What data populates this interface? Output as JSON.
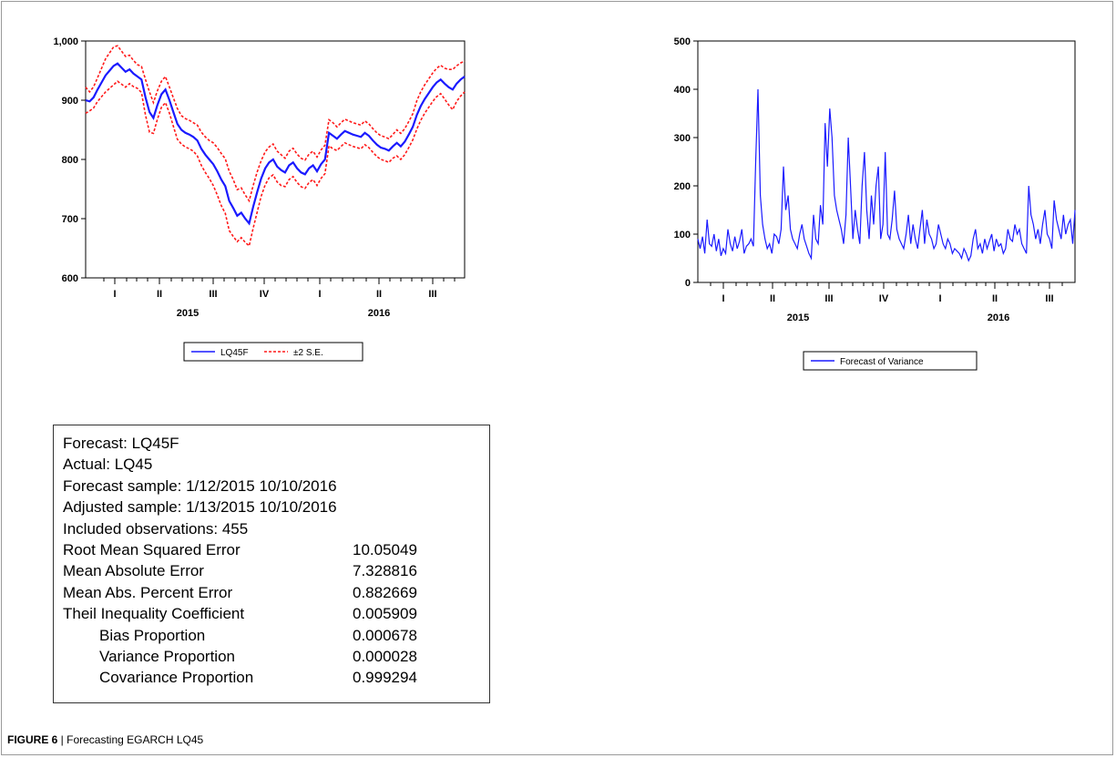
{
  "chart_data": [
    {
      "type": "line",
      "title": "",
      "xlabel": "",
      "ylabel": "",
      "ylim": [
        600,
        1000
      ],
      "yticks": [
        600,
        700,
        800,
        900
      ],
      "top_tick_label": "1,000",
      "x_quarter_labels": [
        "I",
        "II",
        "III",
        "IV",
        "I",
        "II",
        "III"
      ],
      "x_year_labels": [
        "2015",
        "2016"
      ],
      "legend": [
        "LQ45F",
        "±2 S.E."
      ],
      "series": [
        {
          "name": "LQ45F",
          "color": "#1a1aff",
          "values": [
            900,
            898,
            905,
            918,
            930,
            942,
            950,
            958,
            962,
            955,
            948,
            952,
            945,
            940,
            935,
            905,
            880,
            870,
            892,
            910,
            918,
            900,
            880,
            860,
            850,
            845,
            842,
            838,
            832,
            818,
            808,
            800,
            792,
            780,
            766,
            755,
            730,
            718,
            705,
            710,
            700,
            692,
            720,
            745,
            768,
            785,
            795,
            800,
            788,
            782,
            778,
            790,
            795,
            785,
            778,
            775,
            785,
            790,
            780,
            792,
            800,
            845,
            840,
            835,
            842,
            848,
            845,
            842,
            840,
            838,
            845,
            840,
            832,
            825,
            820,
            818,
            815,
            822,
            828,
            822,
            830,
            842,
            855,
            875,
            890,
            902,
            912,
            922,
            930,
            935,
            928,
            922,
            918,
            928,
            935,
            940
          ]
        },
        {
          "name": "±2 S.E.",
          "color": "#ff1a1a",
          "spread": [
            22,
            16,
            18,
            20,
            24,
            28,
            30,
            32,
            30,
            28,
            26,
            24,
            22,
            20,
            22,
            30,
            34,
            26,
            24,
            22,
            22,
            22,
            24,
            26,
            24,
            24,
            24,
            24,
            26,
            28,
            30,
            32,
            36,
            40,
            44,
            46,
            50,
            48,
            44,
            42,
            40,
            38,
            36,
            34,
            30,
            28,
            26,
            26,
            26,
            26,
            24,
            24,
            24,
            24,
            24,
            24,
            24,
            24,
            24,
            24,
            24,
            22,
            22,
            20,
            20,
            20,
            20,
            20,
            20,
            20,
            20,
            20,
            20,
            20,
            20,
            20,
            20,
            20,
            22,
            22,
            22,
            22,
            22,
            24,
            24,
            24,
            24,
            24,
            24,
            24,
            26,
            30,
            34,
            30,
            28,
            26
          ]
        }
      ]
    },
    {
      "type": "line",
      "title": "",
      "xlabel": "",
      "ylabel": "",
      "ylim": [
        0,
        500
      ],
      "yticks": [
        0,
        100,
        200,
        300,
        400,
        500
      ],
      "x_quarter_labels": [
        "I",
        "II",
        "III",
        "IV",
        "I",
        "II",
        "III"
      ],
      "x_year_labels": [
        "2015",
        "2016"
      ],
      "legend": [
        "Forecast of Variance"
      ],
      "series": [
        {
          "name": "Forecast of Variance",
          "color": "#1a1aff",
          "values": [
            90,
            70,
            95,
            60,
            130,
            80,
            75,
            100,
            65,
            90,
            55,
            70,
            60,
            110,
            80,
            65,
            95,
            70,
            85,
            110,
            60,
            75,
            80,
            90,
            75,
            250,
            400,
            180,
            120,
            90,
            70,
            80,
            60,
            100,
            95,
            80,
            110,
            240,
            150,
            180,
            110,
            90,
            80,
            70,
            100,
            120,
            90,
            75,
            60,
            50,
            140,
            90,
            80,
            160,
            120,
            330,
            240,
            360,
            300,
            180,
            150,
            130,
            110,
            80,
            140,
            300,
            200,
            90,
            150,
            110,
            80,
            200,
            270,
            150,
            90,
            180,
            120,
            200,
            240,
            90,
            120,
            270,
            100,
            90,
            130,
            190,
            110,
            90,
            80,
            70,
            100,
            140,
            80,
            120,
            90,
            70,
            110,
            150,
            80,
            130,
            100,
            90,
            70,
            80,
            120,
            100,
            80,
            70,
            90,
            80,
            60,
            70,
            65,
            60,
            50,
            70,
            60,
            45,
            55,
            90,
            110,
            70,
            80,
            60,
            90,
            70,
            85,
            100,
            65,
            90,
            75,
            80,
            60,
            70,
            110,
            90,
            85,
            120,
            100,
            110,
            80,
            70,
            60,
            200,
            140,
            120,
            90,
            110,
            80,
            120,
            150,
            100,
            90,
            70,
            170,
            130,
            110,
            90,
            140,
            100,
            120,
            130,
            80,
            150
          ]
        }
      ]
    }
  ],
  "stats_table": {
    "rows": [
      {
        "label": "Forecast: LQ45F",
        "value": ""
      },
      {
        "label": "Actual: LQ45",
        "value": ""
      },
      {
        "label": "Forecast sample: 1/12/2015 10/10/2016",
        "value": ""
      },
      {
        "label": "Adjusted sample: 1/13/2015 10/10/2016",
        "value": ""
      },
      {
        "label": "Included observations: 455",
        "value": ""
      },
      {
        "label": "Root Mean Squared Error",
        "value": "10.05049"
      },
      {
        "label": "Mean Absolute Error",
        "value": "7.328816"
      },
      {
        "label": "Mean Abs. Percent Error",
        "value": "0.882669"
      },
      {
        "label": "Theil Inequality Coefficient",
        "value": "0.005909"
      },
      {
        "label": "Bias Proportion",
        "value": "0.000678",
        "indent": true
      },
      {
        "label": "Variance Proportion",
        "value": "0.000028",
        "indent": true
      },
      {
        "label": "Covariance Proportion",
        "value": "0.999294",
        "indent": true
      }
    ]
  },
  "caption": {
    "label": "FIGURE 6",
    "text": " | Forecasting EGARCH LQ45"
  }
}
